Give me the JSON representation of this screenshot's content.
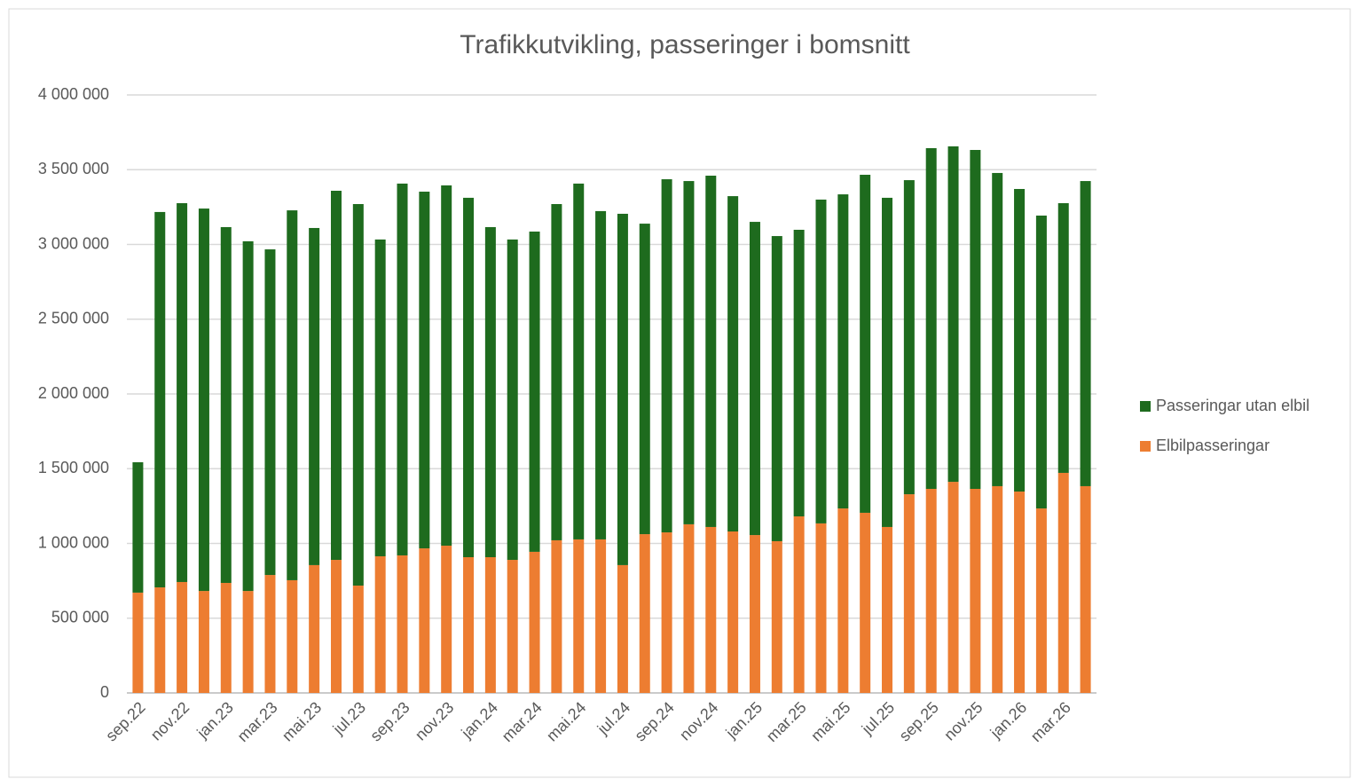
{
  "chart_data": {
    "type": "stacked_bar",
    "title": "Trafikkutvikling, passeringer i bomsnitt",
    "categories": [
      "sep.22",
      null,
      "nov.22",
      null,
      "jan.23",
      null,
      "mar.23",
      null,
      "mai.23",
      null,
      "jul.23",
      null,
      "sep.23",
      null,
      "nov.23",
      null,
      "jan.24",
      null,
      "mar.24",
      null,
      "mai.24",
      null,
      "jul.24",
      null,
      "sep.24",
      null,
      "nov.24",
      null,
      "jan.25",
      null,
      "mar.25",
      null,
      "mai.25",
      null,
      "jul.25",
      null,
      "sep.25",
      null,
      "nov.25",
      null,
      "jan.26",
      null,
      "mar.26",
      null
    ],
    "series": [
      {
        "name": "Elbilpasseringar",
        "color": "#ed7d31",
        "values": [
          671000,
          706000,
          742000,
          682000,
          736000,
          682000,
          789000,
          754000,
          855000,
          890000,
          718000,
          914000,
          920000,
          967000,
          985000,
          908000,
          908000,
          890000,
          944000,
          1021000,
          1027000,
          1027000,
          855000,
          1062000,
          1074000,
          1128000,
          1110000,
          1080000,
          1056000,
          1015000,
          1181000,
          1134000,
          1234000,
          1205000,
          1110000,
          1329000,
          1365000,
          1412000,
          1365000,
          1383000,
          1347000,
          1234000,
          1472000,
          1383000
        ]
      },
      {
        "name": "Passeringar utan elbil",
        "color": "#1e6b1e",
        "values": [
          872000,
          2511000,
          2534000,
          2558000,
          2380000,
          2339000,
          2178000,
          2474000,
          2255000,
          2469000,
          2552000,
          2119000,
          2487000,
          2386000,
          2410000,
          2404000,
          2208000,
          2143000,
          2142000,
          2249000,
          2380000,
          2196000,
          2350000,
          2077000,
          2362000,
          2296000,
          2350000,
          2243000,
          2095000,
          2041000,
          1917000,
          2166000,
          2101000,
          2261000,
          2202000,
          2101000,
          2279000,
          2244000,
          2267000,
          2095000,
          2024000,
          1959000,
          1804000,
          2041000
        ]
      }
    ],
    "ylim": [
      0,
      4000000
    ],
    "yticks": [
      0,
      {
        "value": 500000,
        "label": "500 000"
      },
      {
        "value": 1000000,
        "label": "1 000 000"
      },
      {
        "value": 1500000,
        "label": "1 500 000"
      },
      {
        "value": 2000000,
        "label": "2 000 000"
      },
      {
        "value": 2500000,
        "label": "2 500 000"
      },
      {
        "value": 3000000,
        "label": "3 000 000"
      },
      {
        "value": 3500000,
        "label": "3 500 000"
      },
      {
        "value": 4000000,
        "label": "4 000 000"
      }
    ],
    "grid": true,
    "legend": "right"
  }
}
